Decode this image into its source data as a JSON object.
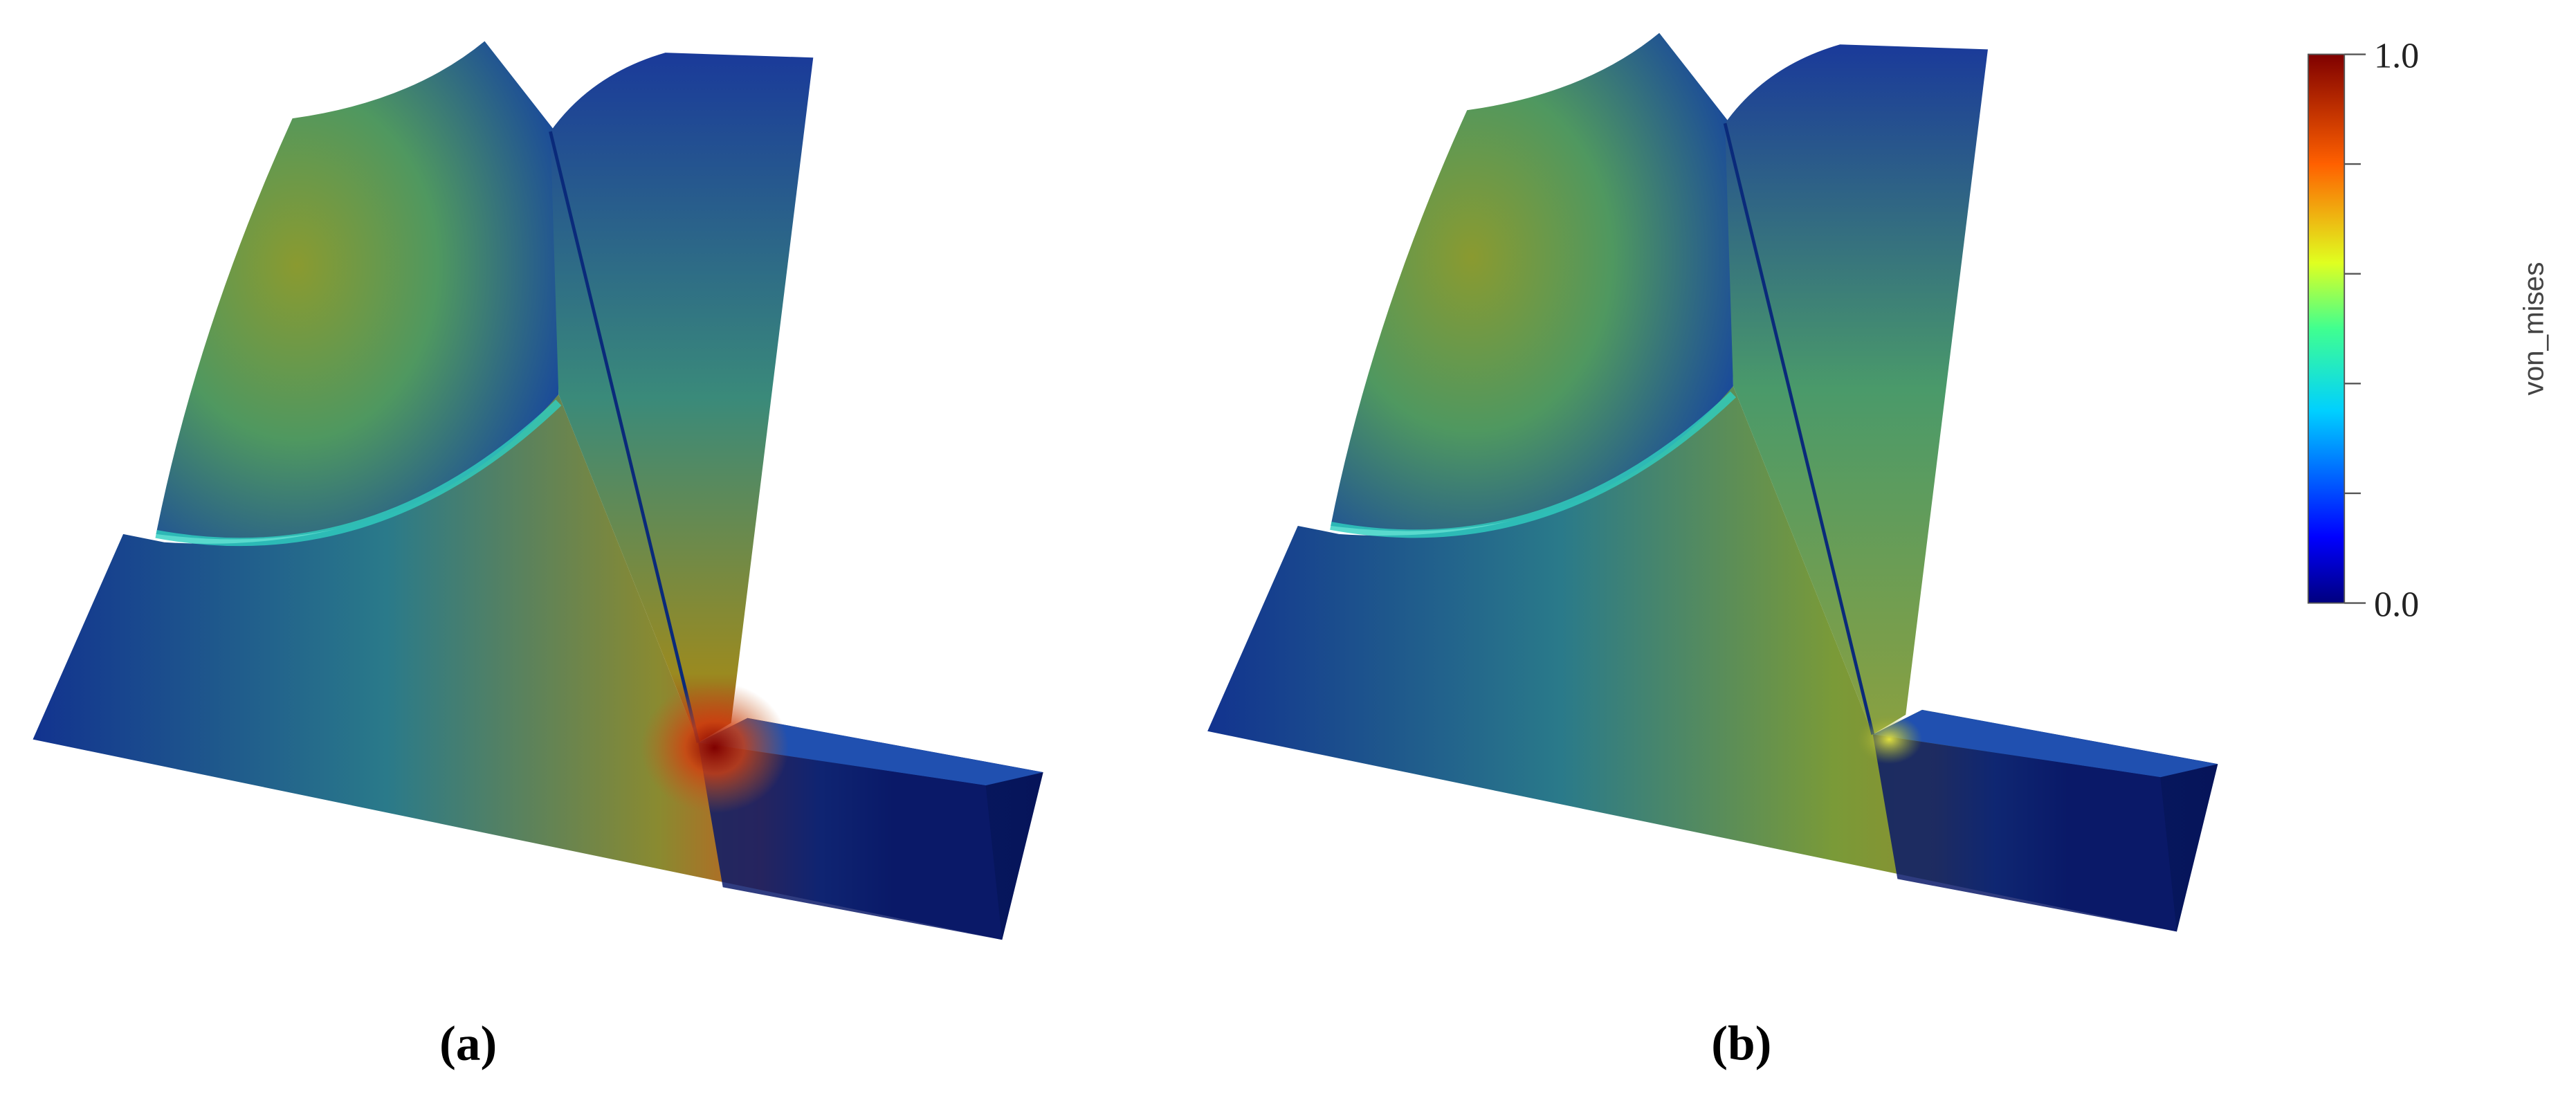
{
  "panels": [
    {
      "caption": "(a)"
    },
    {
      "caption": "(b)"
    }
  ],
  "colorbar": {
    "title": "von_mises",
    "range": [
      0,
      1
    ],
    "ticks": [
      {
        "value": 0,
        "label": "0.0"
      },
      {
        "value": 1,
        "label": "1.0"
      }
    ],
    "minor_ticks": [
      0.2,
      0.4,
      0.6,
      0.8
    ]
  }
}
